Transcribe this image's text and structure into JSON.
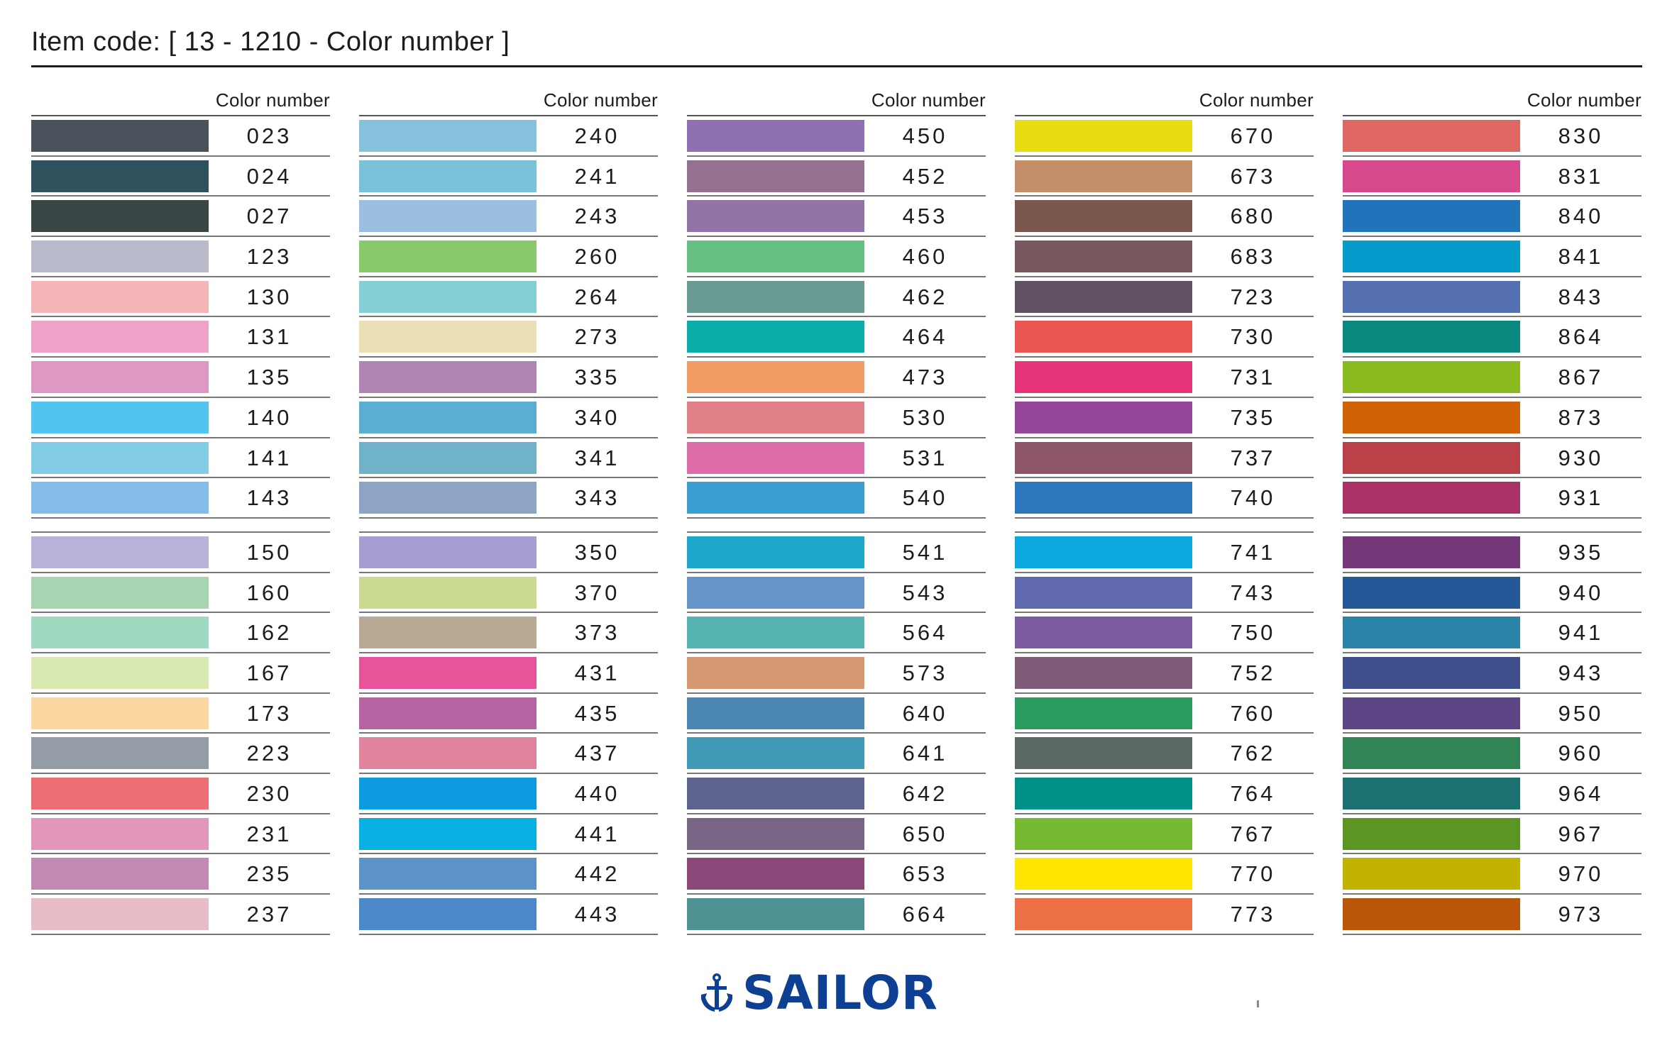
{
  "page_title": "Item code: [ 13 - 1210 - Color number ]",
  "column_header": "Color number",
  "brand": "SAILOR",
  "columns": [
    {
      "group1": [
        {
          "number": "023",
          "color": "#4a525c"
        },
        {
          "number": "024",
          "color": "#30525e"
        },
        {
          "number": "027",
          "color": "#394645"
        },
        {
          "number": "123",
          "color": "#b9bac9"
        },
        {
          "number": "130",
          "color": "#f4b5b9"
        },
        {
          "number": "131",
          "color": "#f0a3c8"
        },
        {
          "number": "135",
          "color": "#dd99c2"
        },
        {
          "number": "140",
          "color": "#53c3f0"
        },
        {
          "number": "141",
          "color": "#82cce6"
        },
        {
          "number": "143",
          "color": "#84bde9"
        }
      ],
      "group2": [
        {
          "number": "150",
          "color": "#b8b4d9"
        },
        {
          "number": "160",
          "color": "#a7d5b1"
        },
        {
          "number": "162",
          "color": "#a1d9c0"
        },
        {
          "number": "167",
          "color": "#d8e9b1"
        },
        {
          "number": "173",
          "color": "#fcd7a1"
        },
        {
          "number": "223",
          "color": "#949ca7"
        },
        {
          "number": "230",
          "color": "#ec6f74"
        },
        {
          "number": "231",
          "color": "#e196ba"
        },
        {
          "number": "235",
          "color": "#c389b5"
        },
        {
          "number": "237",
          "color": "#e7bec6"
        }
      ]
    },
    {
      "group1": [
        {
          "number": "240",
          "color": "#86c1dd"
        },
        {
          "number": "241",
          "color": "#79c2d9"
        },
        {
          "number": "243",
          "color": "#9bbfe0"
        },
        {
          "number": "260",
          "color": "#8ac86c"
        },
        {
          "number": "264",
          "color": "#84d0d6"
        },
        {
          "number": "273",
          "color": "#ebdfb6"
        },
        {
          "number": "335",
          "color": "#b085b4"
        },
        {
          "number": "340",
          "color": "#5badd2"
        },
        {
          "number": "341",
          "color": "#70b3c8"
        },
        {
          "number": "343",
          "color": "#8da4c4"
        }
      ],
      "group2": [
        {
          "number": "350",
          "color": "#a59ed0"
        },
        {
          "number": "370",
          "color": "#cbda92"
        },
        {
          "number": "373",
          "color": "#b8a994"
        },
        {
          "number": "431",
          "color": "#e8549a"
        },
        {
          "number": "435",
          "color": "#b764a3"
        },
        {
          "number": "437",
          "color": "#df849c"
        },
        {
          "number": "440",
          "color": "#0d9be0"
        },
        {
          "number": "441",
          "color": "#09b0e2"
        },
        {
          "number": "442",
          "color": "#5c92c6"
        },
        {
          "number": "443",
          "color": "#4a88c9"
        }
      ]
    },
    {
      "group1": [
        {
          "number": "450",
          "color": "#8e70b3"
        },
        {
          "number": "452",
          "color": "#94718f"
        },
        {
          "number": "453",
          "color": "#9173a8"
        },
        {
          "number": "460",
          "color": "#67c083"
        },
        {
          "number": "462",
          "color": "#6a9a94"
        },
        {
          "number": "464",
          "color": "#0aada8"
        },
        {
          "number": "473",
          "color": "#f29b64"
        },
        {
          "number": "530",
          "color": "#e07f86"
        },
        {
          "number": "531",
          "color": "#dd6ca8"
        },
        {
          "number": "540",
          "color": "#3b9ed3"
        }
      ],
      "group2": [
        {
          "number": "541",
          "color": "#1fa7cb"
        },
        {
          "number": "543",
          "color": "#6693c8"
        },
        {
          "number": "564",
          "color": "#56b5b1"
        },
        {
          "number": "573",
          "color": "#d69870"
        },
        {
          "number": "640",
          "color": "#4c87b1"
        },
        {
          "number": "641",
          "color": "#419bb7"
        },
        {
          "number": "642",
          "color": "#5b638e"
        },
        {
          "number": "650",
          "color": "#796687"
        },
        {
          "number": "653",
          "color": "#8b4878"
        },
        {
          "number": "664",
          "color": "#4e9192"
        }
      ]
    },
    {
      "group1": [
        {
          "number": "670",
          "color": "#e8dc13"
        },
        {
          "number": "673",
          "color": "#c48e68"
        },
        {
          "number": "680",
          "color": "#7a584d"
        },
        {
          "number": "683",
          "color": "#79575e"
        },
        {
          "number": "723",
          "color": "#605165"
        },
        {
          "number": "730",
          "color": "#ea5753"
        },
        {
          "number": "731",
          "color": "#e83479"
        },
        {
          "number": "735",
          "color": "#94469b"
        },
        {
          "number": "737",
          "color": "#8c5568"
        },
        {
          "number": "740",
          "color": "#2c76bc"
        }
      ],
      "group2": [
        {
          "number": "741",
          "color": "#0aa8df"
        },
        {
          "number": "743",
          "color": "#6068ae"
        },
        {
          "number": "750",
          "color": "#7e5aa3"
        },
        {
          "number": "752",
          "color": "#7f5b78"
        },
        {
          "number": "760",
          "color": "#2a9c5d"
        },
        {
          "number": "762",
          "color": "#5d6967"
        },
        {
          "number": "764",
          "color": "#029188"
        },
        {
          "number": "767",
          "color": "#76ba31"
        },
        {
          "number": "770",
          "color": "#ffe600"
        },
        {
          "number": "773",
          "color": "#ec6f45"
        }
      ]
    },
    {
      "group1": [
        {
          "number": "830",
          "color": "#df6762"
        },
        {
          "number": "831",
          "color": "#d64a8d"
        },
        {
          "number": "840",
          "color": "#2174ba"
        },
        {
          "number": "841",
          "color": "#059ccb"
        },
        {
          "number": "843",
          "color": "#5470b0"
        },
        {
          "number": "864",
          "color": "#0a8a7e"
        },
        {
          "number": "867",
          "color": "#8aba20"
        },
        {
          "number": "873",
          "color": "#d06105"
        },
        {
          "number": "930",
          "color": "#bb4148"
        },
        {
          "number": "931",
          "color": "#a93168"
        }
      ],
      "group2": [
        {
          "number": "935",
          "color": "#733879"
        },
        {
          "number": "940",
          "color": "#255896"
        },
        {
          "number": "941",
          "color": "#2a84a8"
        },
        {
          "number": "943",
          "color": "#3e4f8c"
        },
        {
          "number": "950",
          "color": "#5e4588"
        },
        {
          "number": "960",
          "color": "#318554"
        },
        {
          "number": "964",
          "color": "#1c7170"
        },
        {
          "number": "967",
          "color": "#5b9623"
        },
        {
          "number": "970",
          "color": "#c2b300"
        },
        {
          "number": "973",
          "color": "#bb5608"
        }
      ]
    }
  ]
}
